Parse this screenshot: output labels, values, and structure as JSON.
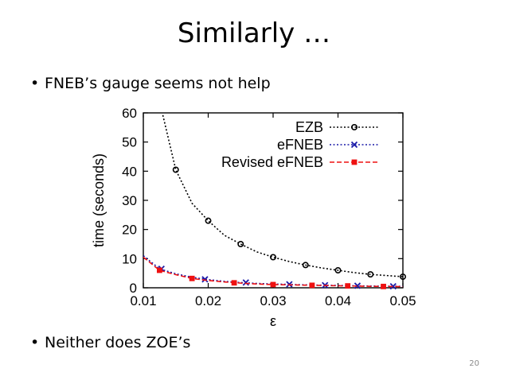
{
  "slide": {
    "title": "Similarly …",
    "bullets": [
      "FNEB’s gauge seems not help",
      "Neither does ZOE’s"
    ],
    "bullet_symbol": "•",
    "page_number": "20"
  },
  "chart_data": {
    "type": "line",
    "title": "",
    "xlabel": "ε",
    "ylabel": "time (seconds)",
    "xlim": [
      0.01,
      0.05
    ],
    "ylim": [
      0,
      60
    ],
    "xticks": [
      0.01,
      0.02,
      0.03,
      0.04,
      0.05
    ],
    "xtick_labels": [
      "0.01",
      "0.02",
      "0.03",
      "0.04",
      "0.05"
    ],
    "yticks": [
      0,
      10,
      20,
      30,
      40,
      50,
      60
    ],
    "ytick_labels": [
      "0",
      "10",
      "20",
      "30",
      "40",
      "50",
      "60"
    ],
    "legend_position": "top-right",
    "grid": false,
    "series": [
      {
        "name": "EZB",
        "color": "#000000",
        "marker": "circle",
        "dash": "dotted",
        "x": [
          0.0125,
          0.015,
          0.0175,
          0.02,
          0.0225,
          0.025,
          0.0275,
          0.03,
          0.0325,
          0.035,
          0.0375,
          0.04,
          0.0425,
          0.045,
          0.0475,
          0.05
        ],
        "y": [
          64,
          40.5,
          29,
          23,
          18,
          15,
          12.3,
          10.5,
          9,
          7.8,
          6.8,
          6,
          5.2,
          4.6,
          4.2,
          3.8
        ],
        "marker_x": [
          0.015,
          0.02,
          0.025,
          0.03,
          0.035,
          0.04,
          0.045,
          0.05
        ],
        "marker_y": [
          40.5,
          23,
          15,
          10.5,
          7.8,
          6,
          4.6,
          3.8
        ]
      },
      {
        "name": "eFNEB",
        "color": "#1a1aa8",
        "marker": "x",
        "dash": "dotted",
        "x": [
          0.01,
          0.0125,
          0.015,
          0.0175,
          0.02,
          0.0225,
          0.025,
          0.0275,
          0.03,
          0.035,
          0.04,
          0.045,
          0.05
        ],
        "y": [
          11,
          6.5,
          4.8,
          3.6,
          2.8,
          2.2,
          1.8,
          1.5,
          1.3,
          1.0,
          0.8,
          0.6,
          0.5
        ],
        "marker_x": [
          0.0128,
          0.0195,
          0.0258,
          0.0325,
          0.038,
          0.043,
          0.0485
        ],
        "marker_y": [
          6.5,
          2.9,
          1.8,
          1.2,
          0.9,
          0.7,
          0.5
        ]
      },
      {
        "name": "Revised eFNEB",
        "color": "#ee1111",
        "marker": "square",
        "dash": "dashed",
        "x": [
          0.01,
          0.0125,
          0.015,
          0.0175,
          0.02,
          0.0225,
          0.025,
          0.0275,
          0.03,
          0.035,
          0.04,
          0.045,
          0.05
        ],
        "y": [
          10.5,
          6.0,
          4.5,
          3.2,
          2.5,
          2.0,
          1.6,
          1.3,
          1.1,
          0.9,
          0.7,
          0.5,
          0.4
        ],
        "marker_x": [
          0.0125,
          0.0175,
          0.024,
          0.03,
          0.036,
          0.0415,
          0.047
        ],
        "marker_y": [
          6.0,
          3.2,
          1.7,
          1.1,
          0.85,
          0.65,
          0.45
        ]
      }
    ]
  }
}
